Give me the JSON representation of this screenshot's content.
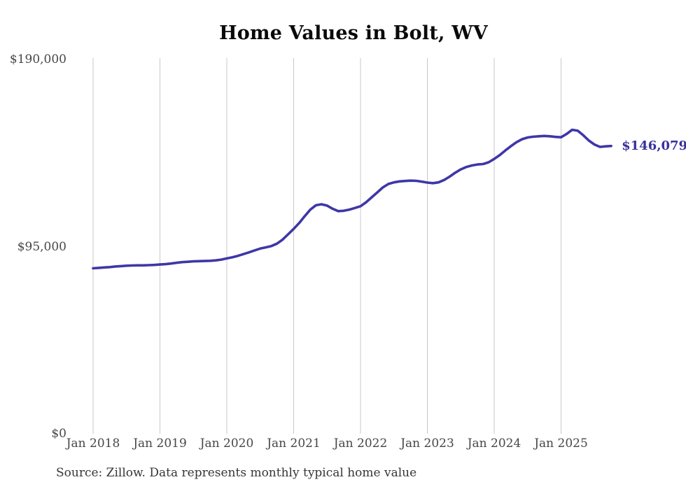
{
  "title": "Home Values in Bolt, WV",
  "source_note": "Source: Zillow. Data represents monthly typical home value",
  "end_value_label": "$146,079",
  "colors": {
    "line": "#3e37a6",
    "end_label": "#38309c",
    "grid": "#c9c9c9",
    "axis_text": "#474747",
    "title_text": "#0a0a0a",
    "source_text": "#363636"
  },
  "y_axis": {
    "ticks": [
      {
        "label": "$190,000",
        "value": 190000
      },
      {
        "label": "$95,000",
        "value": 95000
      },
      {
        "label": "$0",
        "value": 0
      }
    ]
  },
  "x_axis": {
    "ticks": [
      {
        "label": "Jan 2018",
        "month_index": 0
      },
      {
        "label": "Jan 2019",
        "month_index": 12
      },
      {
        "label": "Jan 2020",
        "month_index": 24
      },
      {
        "label": "Jan 2021",
        "month_index": 36
      },
      {
        "label": "Jan 2022",
        "month_index": 48
      },
      {
        "label": "Jan 2023",
        "month_index": 60
      },
      {
        "label": "Jan 2024",
        "month_index": 72
      },
      {
        "label": "Jan 2025",
        "month_index": 84
      }
    ]
  },
  "chart_data": {
    "type": "line",
    "title": "Home Values in Bolt, WV",
    "xlabel": "",
    "ylabel": "",
    "x_start": "2018-01",
    "x_end": "2025-10",
    "x_interval": "monthly",
    "ylim": [
      0,
      190000
    ],
    "grid": "vertical-only",
    "legend": "none",
    "last_value": 146079,
    "values": [
      84000,
      84200,
      84400,
      84600,
      84900,
      85100,
      85300,
      85400,
      85500,
      85500,
      85600,
      85700,
      85900,
      86100,
      86400,
      86800,
      87100,
      87300,
      87500,
      87600,
      87700,
      87800,
      88000,
      88400,
      89000,
      89600,
      90300,
      91200,
      92100,
      93100,
      94000,
      94600,
      95300,
      96500,
      98500,
      101200,
      104000,
      107000,
      110500,
      113800,
      116000,
      116500,
      115800,
      114200,
      113000,
      113200,
      113800,
      114600,
      115500,
      117500,
      120000,
      122500,
      125000,
      126800,
      127600,
      128100,
      128300,
      128500,
      128400,
      128000,
      127500,
      127200,
      127600,
      128800,
      130500,
      132500,
      134200,
      135400,
      136200,
      136700,
      136900,
      137800,
      139500,
      141500,
      143800,
      146000,
      148000,
      149500,
      150400,
      150800,
      151000,
      151200,
      151000,
      150700,
      150500,
      152200,
      154300,
      153800,
      151500,
      148800,
      146800,
      145600,
      145900,
      146079
    ]
  }
}
